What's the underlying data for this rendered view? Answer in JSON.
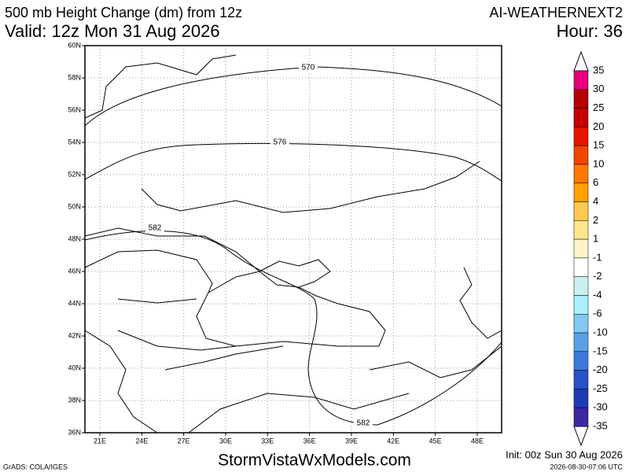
{
  "header": {
    "title": "500 mb Height Change (dm) from 12z",
    "model": "AI-WEATHERNEXT2",
    "valid": "Valid: 12z Mon 31 Aug 2026",
    "hour": "Hour: 36"
  },
  "map": {
    "lat_labels": [
      "60N",
      "58N",
      "56N",
      "54N",
      "52N",
      "50N",
      "48N",
      "46N",
      "44N",
      "42N",
      "40N",
      "38N",
      "36N"
    ],
    "lon_labels": [
      "21E",
      "24E",
      "27E",
      "30E",
      "33E",
      "36E",
      "39E",
      "42E",
      "45E",
      "48E"
    ],
    "contours": [
      {
        "label": "570"
      },
      {
        "label": "576"
      },
      {
        "label": "582"
      },
      {
        "label": "582"
      }
    ]
  },
  "colorbar": {
    "labels": [
      "35",
      "30",
      "25",
      "20",
      "15",
      "10",
      "6",
      "4",
      "2",
      "1",
      "-1",
      "-2",
      "-4",
      "-6",
      "-10",
      "-15",
      "-20",
      "-25",
      "-30",
      "-35"
    ],
    "colors": [
      "#e6007e",
      "#b40000",
      "#c80000",
      "#e61400",
      "#f04600",
      "#ff7800",
      "#ffa000",
      "#ffc850",
      "#ffe68c",
      "#fff5c8",
      "#ffffff",
      "#c8f0f0",
      "#aaf0ff",
      "#82c8f0",
      "#5aa0e6",
      "#3c78dc",
      "#2850c8",
      "#1e3cb4",
      "#3c28a0",
      "#8c14dc"
    ]
  },
  "footer": {
    "site": "StormVistaWxModels.com",
    "init": "Init: 00z Sun 30 Aug 2026",
    "credit": "GrADS: COLA/IGES",
    "stamp": "2026-08-30-07:06 UTC"
  }
}
